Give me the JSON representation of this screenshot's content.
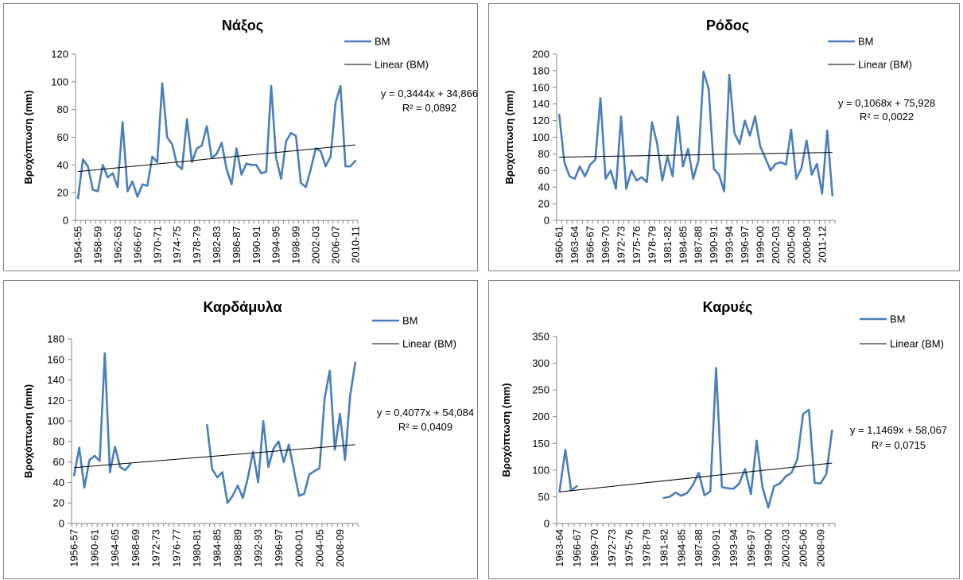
{
  "legend": {
    "series": "BM",
    "trend": "Linear (BM)"
  },
  "colors": {
    "series": "#4a7ebb",
    "trend": "#000000",
    "border": "#7f7f7f"
  },
  "chart_data": [
    {
      "type": "line",
      "title": "Νάξος",
      "ylabel": "Βροχόπτωση (mm)",
      "ylim": [
        0,
        120
      ],
      "yticks": [
        0,
        20,
        40,
        60,
        80,
        100,
        120
      ],
      "x_labels": [
        "1954-55",
        "1958-59",
        "1962-63",
        "1966-67",
        "1970-71",
        "1974-75",
        "1978-79",
        "1982-83",
        "1986-87",
        "1990-91",
        "1994-95",
        "1998-99",
        "2002-03",
        "2006-07",
        "2010-11"
      ],
      "label_start_year": 1954,
      "start_year": 1954,
      "values": [
        16,
        44,
        39,
        22,
        21,
        40,
        31,
        34,
        24,
        71,
        21,
        28,
        17,
        26,
        25,
        46,
        42,
        99,
        60,
        55,
        40,
        37,
        73,
        42,
        52,
        54,
        68,
        45,
        48,
        56,
        37,
        26,
        52,
        33,
        41,
        40,
        40,
        34,
        35,
        97,
        45,
        30,
        57,
        63,
        61,
        27,
        24,
        37,
        52,
        50,
        39,
        46,
        85,
        97,
        39,
        39,
        43
      ],
      "trend": {
        "slope": 0.3444,
        "intercept": 34.866
      },
      "equation": "y = 0,3444x + 34,866",
      "r2": "R² = 0,0892",
      "legend_position": "top-right"
    },
    {
      "type": "line",
      "title": "Ρόδος",
      "ylabel": "Βροχόπτωση (mm)",
      "ylim": [
        0,
        200
      ],
      "yticks": [
        0,
        20,
        40,
        60,
        80,
        100,
        120,
        140,
        160,
        180,
        200
      ],
      "x_labels": [
        "1960-61",
        "1963-64",
        "1966-67",
        "1969-70",
        "1972-73",
        "1975-76",
        "1978-79",
        "1981-82",
        "1984-85",
        "1987-88",
        "1990-91",
        "1993-94",
        "1996-97",
        "1999-00",
        "2002-03",
        "2005-06",
        "2008-09",
        "2011-12"
      ],
      "label_start_year": 1960,
      "start_year": 1960,
      "values": [
        127,
        70,
        53,
        50,
        65,
        53,
        67,
        73,
        147,
        50,
        60,
        38,
        125,
        38,
        60,
        48,
        52,
        46,
        118,
        92,
        48,
        77,
        53,
        125,
        65,
        86,
        50,
        72,
        179,
        158,
        62,
        55,
        35,
        175,
        105,
        92,
        120,
        102,
        125,
        89,
        75,
        60,
        68,
        70,
        67,
        109,
        50,
        63,
        96,
        55,
        68,
        32,
        108,
        30
      ],
      "trend": {
        "slope": 0.1068,
        "intercept": 75.928
      },
      "equation": "y = 0,1068x + 75,928",
      "r2": "R² = 0,0022",
      "legend_position": "top-right"
    },
    {
      "type": "line",
      "title": "Καρδάμυλα",
      "ylabel": "Βροχόπτωση (mm)",
      "ylim": [
        0,
        180
      ],
      "yticks": [
        0,
        20,
        40,
        60,
        80,
        100,
        120,
        140,
        160,
        180
      ],
      "x_labels": [
        "1956-57",
        "1960-61",
        "1964-65",
        "1968-69",
        "1972-73",
        "1976-77",
        "1980-81",
        "1984-85",
        "1988-89",
        "1992-93",
        "1996-97",
        "2000-01",
        "2004-05",
        "2008-09"
      ],
      "label_start_year": 1956,
      "start_year": 1956,
      "values": [
        47,
        74,
        35,
        62,
        66,
        61,
        166,
        50,
        75,
        55,
        52,
        58,
        null,
        null,
        null,
        null,
        null,
        null,
        null,
        null,
        null,
        null,
        null,
        null,
        null,
        null,
        96,
        53,
        45,
        50,
        20,
        27,
        37,
        25,
        45,
        70,
        40,
        100,
        55,
        73,
        80,
        60,
        77,
        52,
        27,
        29,
        48,
        51,
        54,
        122,
        149,
        72,
        107,
        62,
        125,
        157
      ],
      "trend": {
        "slope": 0.4077,
        "intercept": 54.084
      },
      "equation": "y = 0,4077x + 54,084",
      "r2": "R² = 0,0409",
      "legend_position": "top-right"
    },
    {
      "type": "line",
      "title": "Καρυές",
      "ylabel": "Βροχόπτωση (mm)",
      "ylim": [
        0,
        350
      ],
      "yticks": [
        0,
        50,
        100,
        150,
        200,
        250,
        300,
        350
      ],
      "x_labels": [
        "1963-64",
        "1966-67",
        "1969-70",
        "1972-73",
        "1975-76",
        "1978-79",
        "1981-82",
        "1984-85",
        "1987-88",
        "1990-91",
        "1993-94",
        "1996-97",
        "1999-00",
        "2002-03",
        "2005-06",
        "2008-09"
      ],
      "label_start_year": 1963,
      "start_year": 1963,
      "values": [
        60,
        138,
        62,
        70,
        null,
        null,
        null,
        null,
        null,
        null,
        null,
        null,
        null,
        null,
        null,
        null,
        null,
        null,
        48,
        50,
        58,
        52,
        57,
        72,
        95,
        53,
        60,
        291,
        68,
        66,
        65,
        75,
        102,
        55,
        155,
        68,
        30,
        70,
        75,
        88,
        95,
        120,
        205,
        213,
        76,
        75,
        92,
        174
      ],
      "trend": {
        "slope": 1.1469,
        "intercept": 58.067
      },
      "equation": "y = 1,1469x + 58,067",
      "r2": "R² = 0,0715",
      "legend_position": "top-right"
    }
  ]
}
